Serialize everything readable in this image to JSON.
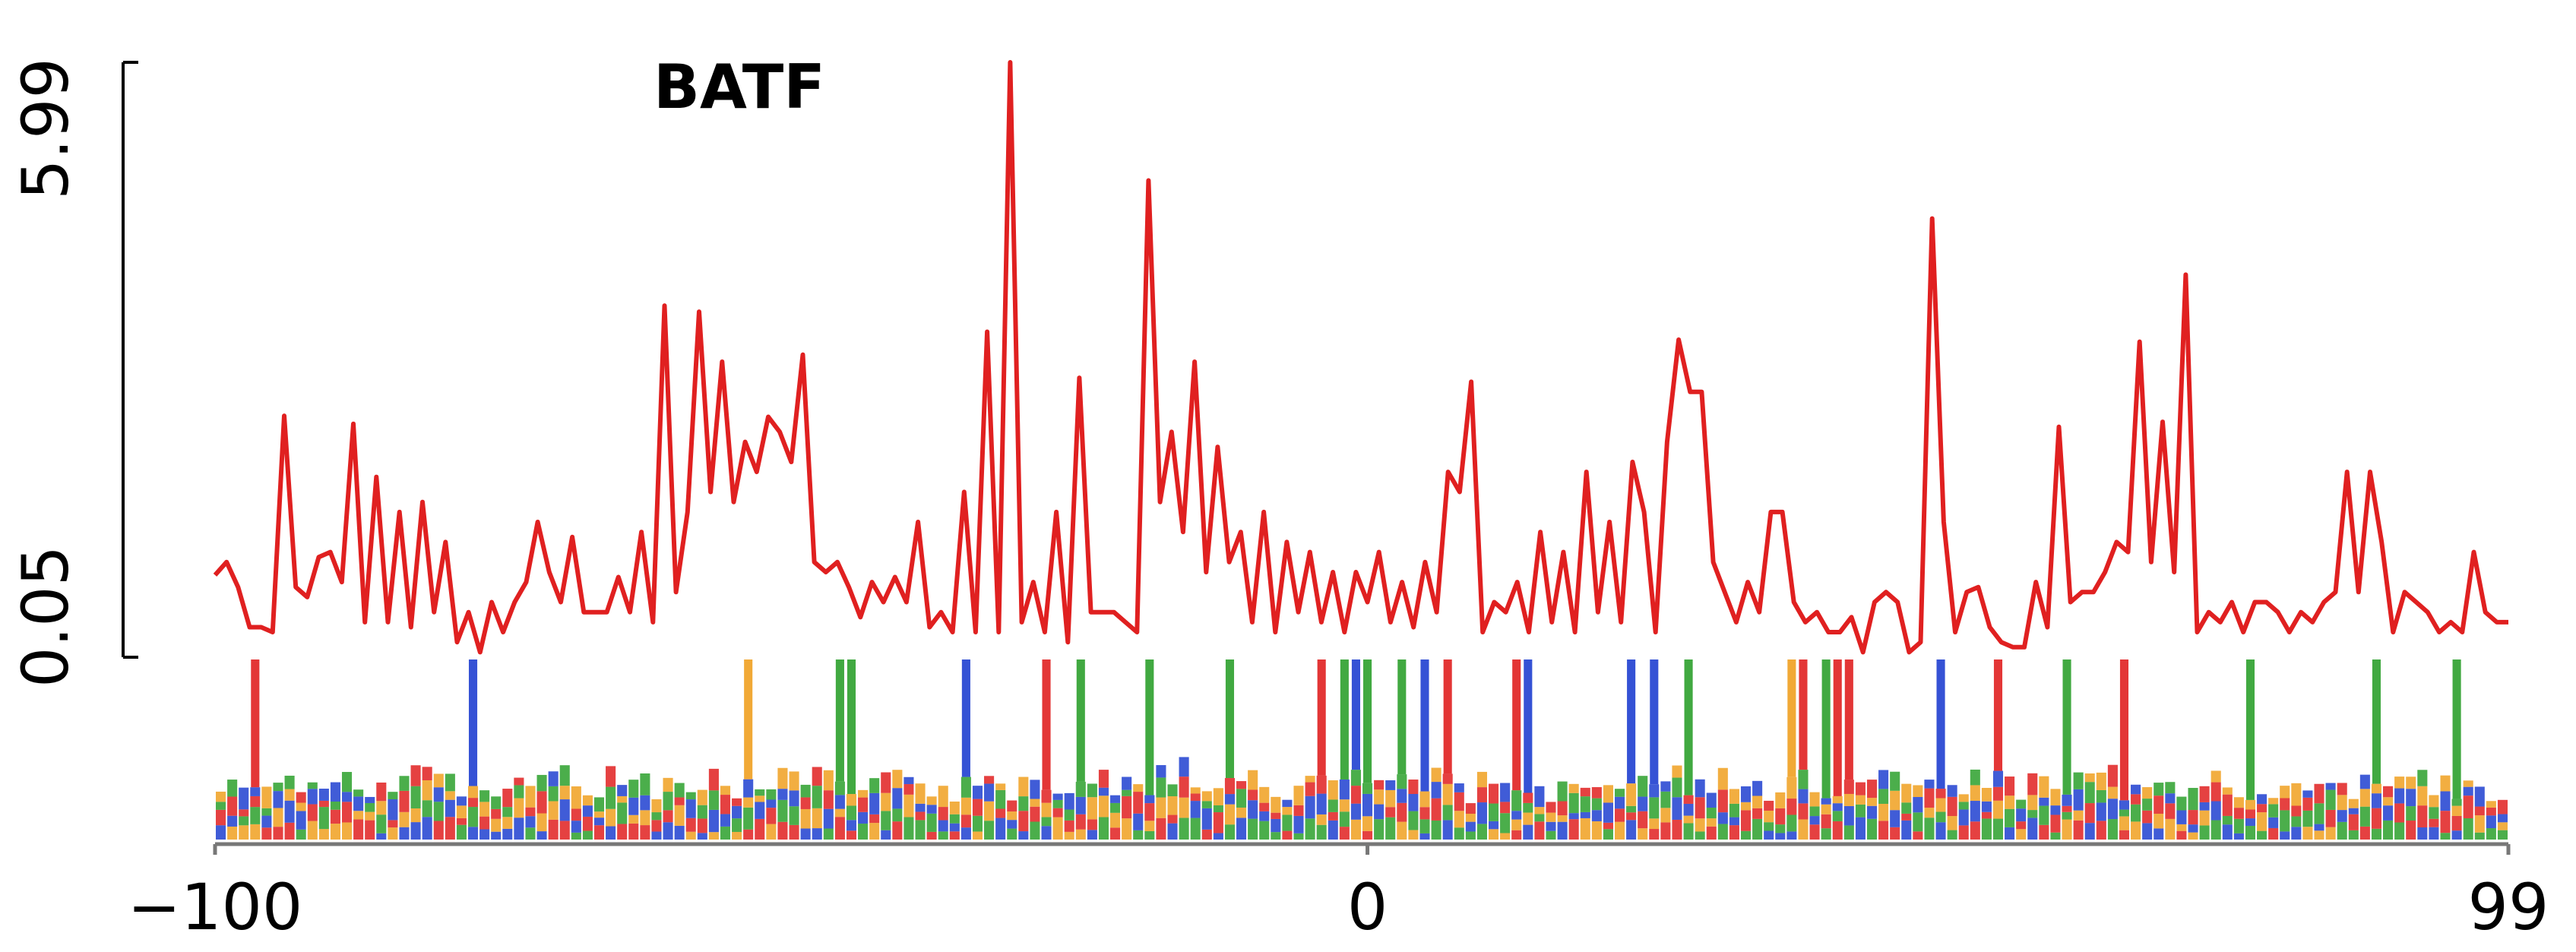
{
  "chart_data": {
    "type": "line",
    "title": "BATF",
    "x": [
      -100,
      -99,
      -98,
      -97,
      -96,
      -95,
      -94,
      -93,
      -92,
      -91,
      -90,
      -89,
      -88,
      -87,
      -86,
      -85,
      -84,
      -83,
      -82,
      -81,
      -80,
      -79,
      -78,
      -77,
      -76,
      -75,
      -74,
      -73,
      -72,
      -71,
      -70,
      -69,
      -68,
      -67,
      -66,
      -65,
      -64,
      -63,
      -62,
      -61,
      -60,
      -59,
      -58,
      -57,
      -56,
      -55,
      -54,
      -53,
      -52,
      -51,
      -50,
      -49,
      -48,
      -47,
      -46,
      -45,
      -44,
      -43,
      -42,
      -41,
      -40,
      -39,
      -38,
      -37,
      -36,
      -35,
      -34,
      -33,
      -32,
      -31,
      -30,
      -29,
      -28,
      -27,
      -26,
      -25,
      -24,
      -23,
      -22,
      -21,
      -20,
      -19,
      -18,
      -17,
      -16,
      -15,
      -14,
      -13,
      -12,
      -11,
      -10,
      -9,
      -8,
      -7,
      -6,
      -5,
      -4,
      -3,
      -2,
      -1,
      0,
      1,
      2,
      3,
      4,
      5,
      6,
      7,
      8,
      9,
      10,
      11,
      12,
      13,
      14,
      15,
      16,
      17,
      18,
      19,
      20,
      21,
      22,
      23,
      24,
      25,
      26,
      27,
      28,
      29,
      30,
      31,
      32,
      33,
      34,
      35,
      36,
      37,
      38,
      39,
      40,
      41,
      42,
      43,
      44,
      45,
      46,
      47,
      48,
      49,
      50,
      51,
      52,
      53,
      54,
      55,
      56,
      57,
      58,
      59,
      60,
      61,
      62,
      63,
      64,
      65,
      66,
      67,
      68,
      69,
      70,
      71,
      72,
      73,
      74,
      75,
      76,
      77,
      78,
      79,
      80,
      81,
      82,
      83,
      84,
      85,
      86,
      87,
      88,
      89,
      90,
      91,
      92,
      93,
      94,
      95,
      96,
      97,
      98,
      99
    ],
    "series": [
      {
        "color": "#e02020",
        "values": [
          0.87,
          1.0,
          0.75,
          0.35,
          0.35,
          0.3,
          2.46,
          0.75,
          0.65,
          1.05,
          1.1,
          0.8,
          2.38,
          0.4,
          1.85,
          0.4,
          1.5,
          0.35,
          1.6,
          0.5,
          1.2,
          0.2,
          0.5,
          0.1,
          0.6,
          0.3,
          0.6,
          0.8,
          1.4,
          0.9,
          0.6,
          1.25,
          0.5,
          0.5,
          0.5,
          0.85,
          0.5,
          1.3,
          0.4,
          3.56,
          0.7,
          1.5,
          3.5,
          1.7,
          3.0,
          1.6,
          2.2,
          1.9,
          2.45,
          2.3,
          2.0,
          3.07,
          1.0,
          0.9,
          1.0,
          0.75,
          0.45,
          0.8,
          0.6,
          0.85,
          0.6,
          1.4,
          0.35,
          0.5,
          0.3,
          1.7,
          0.3,
          3.3,
          0.3,
          5.99,
          0.4,
          0.8,
          0.3,
          1.5,
          0.2,
          2.84,
          0.5,
          0.5,
          0.5,
          0.4,
          0.3,
          4.81,
          1.6,
          2.3,
          1.3,
          3.0,
          0.9,
          2.15,
          1.0,
          1.3,
          0.4,
          1.5,
          0.3,
          1.2,
          0.5,
          1.1,
          0.4,
          0.9,
          0.3,
          0.9,
          0.6,
          1.1,
          0.4,
          0.8,
          0.35,
          1.0,
          0.5,
          1.9,
          1.7,
          2.8,
          0.3,
          0.6,
          0.5,
          0.8,
          0.3,
          1.3,
          0.4,
          1.1,
          0.3,
          1.9,
          0.5,
          1.4,
          0.4,
          2.0,
          1.5,
          0.3,
          2.2,
          3.22,
          2.7,
          2.7,
          1.0,
          0.7,
          0.4,
          0.8,
          0.5,
          1.5,
          1.5,
          0.6,
          0.4,
          0.5,
          0.3,
          0.3,
          0.45,
          0.1,
          0.6,
          0.7,
          0.6,
          0.1,
          0.2,
          4.43,
          1.4,
          0.3,
          0.7,
          0.75,
          0.35,
          0.2,
          0.15,
          0.15,
          0.8,
          0.35,
          2.35,
          0.6,
          0.7,
          0.7,
          0.9,
          1.2,
          1.1,
          3.2,
          1.0,
          2.4,
          0.9,
          3.87,
          0.3,
          0.5,
          0.4,
          0.6,
          0.3,
          0.6,
          0.6,
          0.5,
          0.3,
          0.5,
          0.4,
          0.6,
          0.7,
          1.9,
          0.7,
          1.9,
          1.2,
          0.3,
          0.7,
          0.6,
          0.5,
          0.3,
          0.4,
          0.3,
          1.1,
          0.5,
          0.4,
          0.4
        ]
      }
    ],
    "xlim": [
      -100,
      99
    ],
    "xticks": [
      {
        "value": -100,
        "label": "−100"
      },
      0,
      99
    ],
    "ylim": [
      0.05,
      5.99
    ],
    "yticks": [
      0.05,
      5.99
    ]
  }
}
